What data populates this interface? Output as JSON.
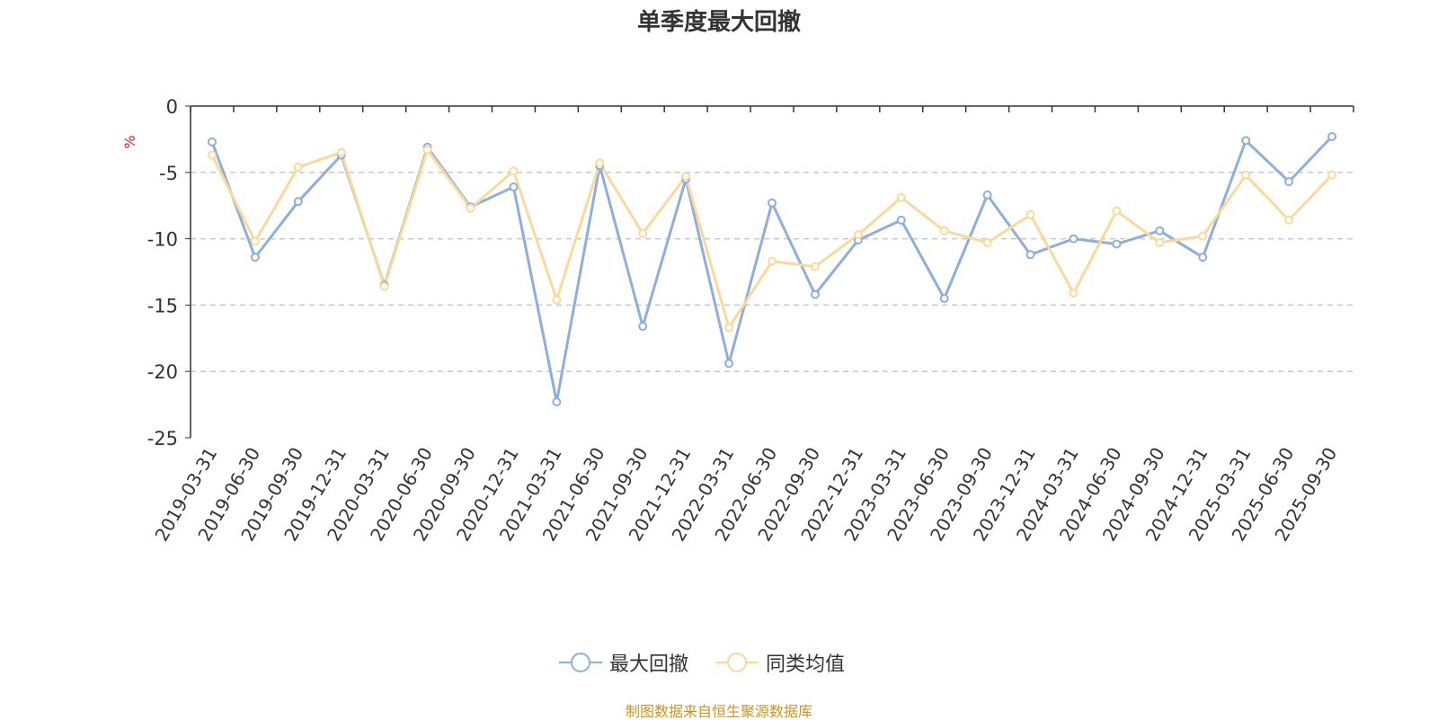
{
  "chart_data": {
    "type": "line",
    "title": "单季度最大回撤",
    "ylabel": "%",
    "xlabel": "",
    "ylim": [
      -25,
      0
    ],
    "yticks": [
      0,
      -5,
      -10,
      -15,
      -20,
      -25
    ],
    "grid": "horizontal-dashed",
    "legend_position": "bottom-center",
    "categories": [
      "2019-03-31",
      "2019-06-30",
      "2019-09-30",
      "2019-12-31",
      "2020-03-31",
      "2020-06-30",
      "2020-09-30",
      "2020-12-31",
      "2021-03-31",
      "2021-06-30",
      "2021-09-30",
      "2021-12-31",
      "2022-03-31",
      "2022-06-30",
      "2022-09-30",
      "2022-12-31",
      "2023-03-31",
      "2023-06-30",
      "2023-09-30",
      "2023-12-31",
      "2024-03-31",
      "2024-06-30",
      "2024-09-30",
      "2024-12-31",
      "2025-03-31",
      "2025-06-30",
      "2025-09-30"
    ],
    "series": [
      {
        "name": "最大回撤",
        "color": "#8eaedc",
        "values": [
          -2.7,
          -11.4,
          -7.2,
          -3.7,
          -13.5,
          -3.1,
          -7.6,
          -6.1,
          -22.3,
          -4.5,
          -16.6,
          -5.5,
          -19.4,
          -7.3,
          -14.2,
          -10.1,
          -8.6,
          -14.5,
          -6.7,
          -11.2,
          -10.0,
          -10.4,
          -9.4,
          -11.4,
          -2.6,
          -5.7,
          -2.3
        ]
      },
      {
        "name": "同类均值",
        "color": "#fbd99b",
        "values": [
          -3.7,
          -10.2,
          -4.6,
          -3.5,
          -13.6,
          -3.3,
          -7.7,
          -4.9,
          -14.6,
          -4.3,
          -9.6,
          -5.3,
          -16.7,
          -11.7,
          -12.1,
          -9.7,
          -6.9,
          -9.4,
          -10.3,
          -8.2,
          -14.1,
          -7.9,
          -10.3,
          -9.8,
          -5.2,
          -8.6,
          -5.2
        ]
      }
    ]
  },
  "legend": {
    "items": [
      {
        "label": "最大回撤",
        "color": "#8eaedc"
      },
      {
        "label": "同类均值",
        "color": "#fbd99b"
      }
    ]
  },
  "footer": {
    "source": "制图数据来自恒生聚源数据库"
  }
}
